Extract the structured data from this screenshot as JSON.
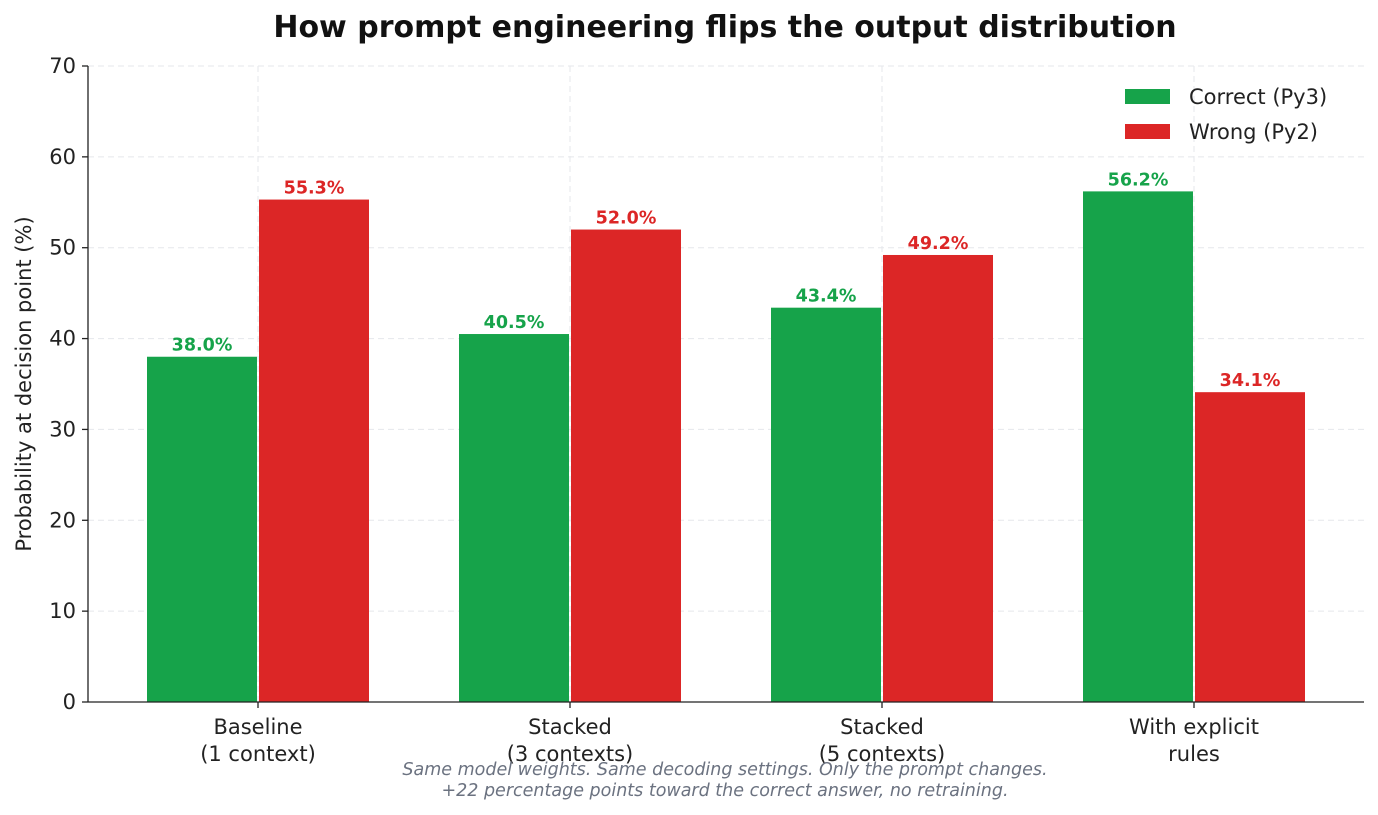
{
  "chart_data": {
    "type": "bar",
    "title": "How prompt engineering flips the output distribution",
    "ylabel": "Probability at decision point (%)",
    "xlabel": "",
    "ylim": [
      0,
      70
    ],
    "yticks": [
      0,
      10,
      20,
      30,
      40,
      50,
      60,
      70
    ],
    "grid": true,
    "legend_position": "top-right",
    "categories": [
      [
        "Baseline",
        "(1 context)"
      ],
      [
        "Stacked",
        "(3 contexts)"
      ],
      [
        "Stacked",
        "(5 contexts)"
      ],
      [
        "With explicit",
        "rules"
      ]
    ],
    "series": [
      {
        "name": "Correct (Py3)",
        "color": "#16a34a",
        "values": [
          38.0,
          40.5,
          43.4,
          56.2
        ],
        "labels": [
          "38.0%",
          "40.5%",
          "43.4%",
          "56.2%"
        ]
      },
      {
        "name": "Wrong (Py2)",
        "color": "#dc2626",
        "values": [
          55.3,
          52.0,
          49.2,
          34.1
        ],
        "labels": [
          "55.3%",
          "52.0%",
          "49.2%",
          "34.1%"
        ]
      }
    ],
    "footnote": [
      "Same model weights. Same decoding settings. Only the prompt changes.",
      "+22 percentage points toward the correct answer, no retraining."
    ]
  }
}
